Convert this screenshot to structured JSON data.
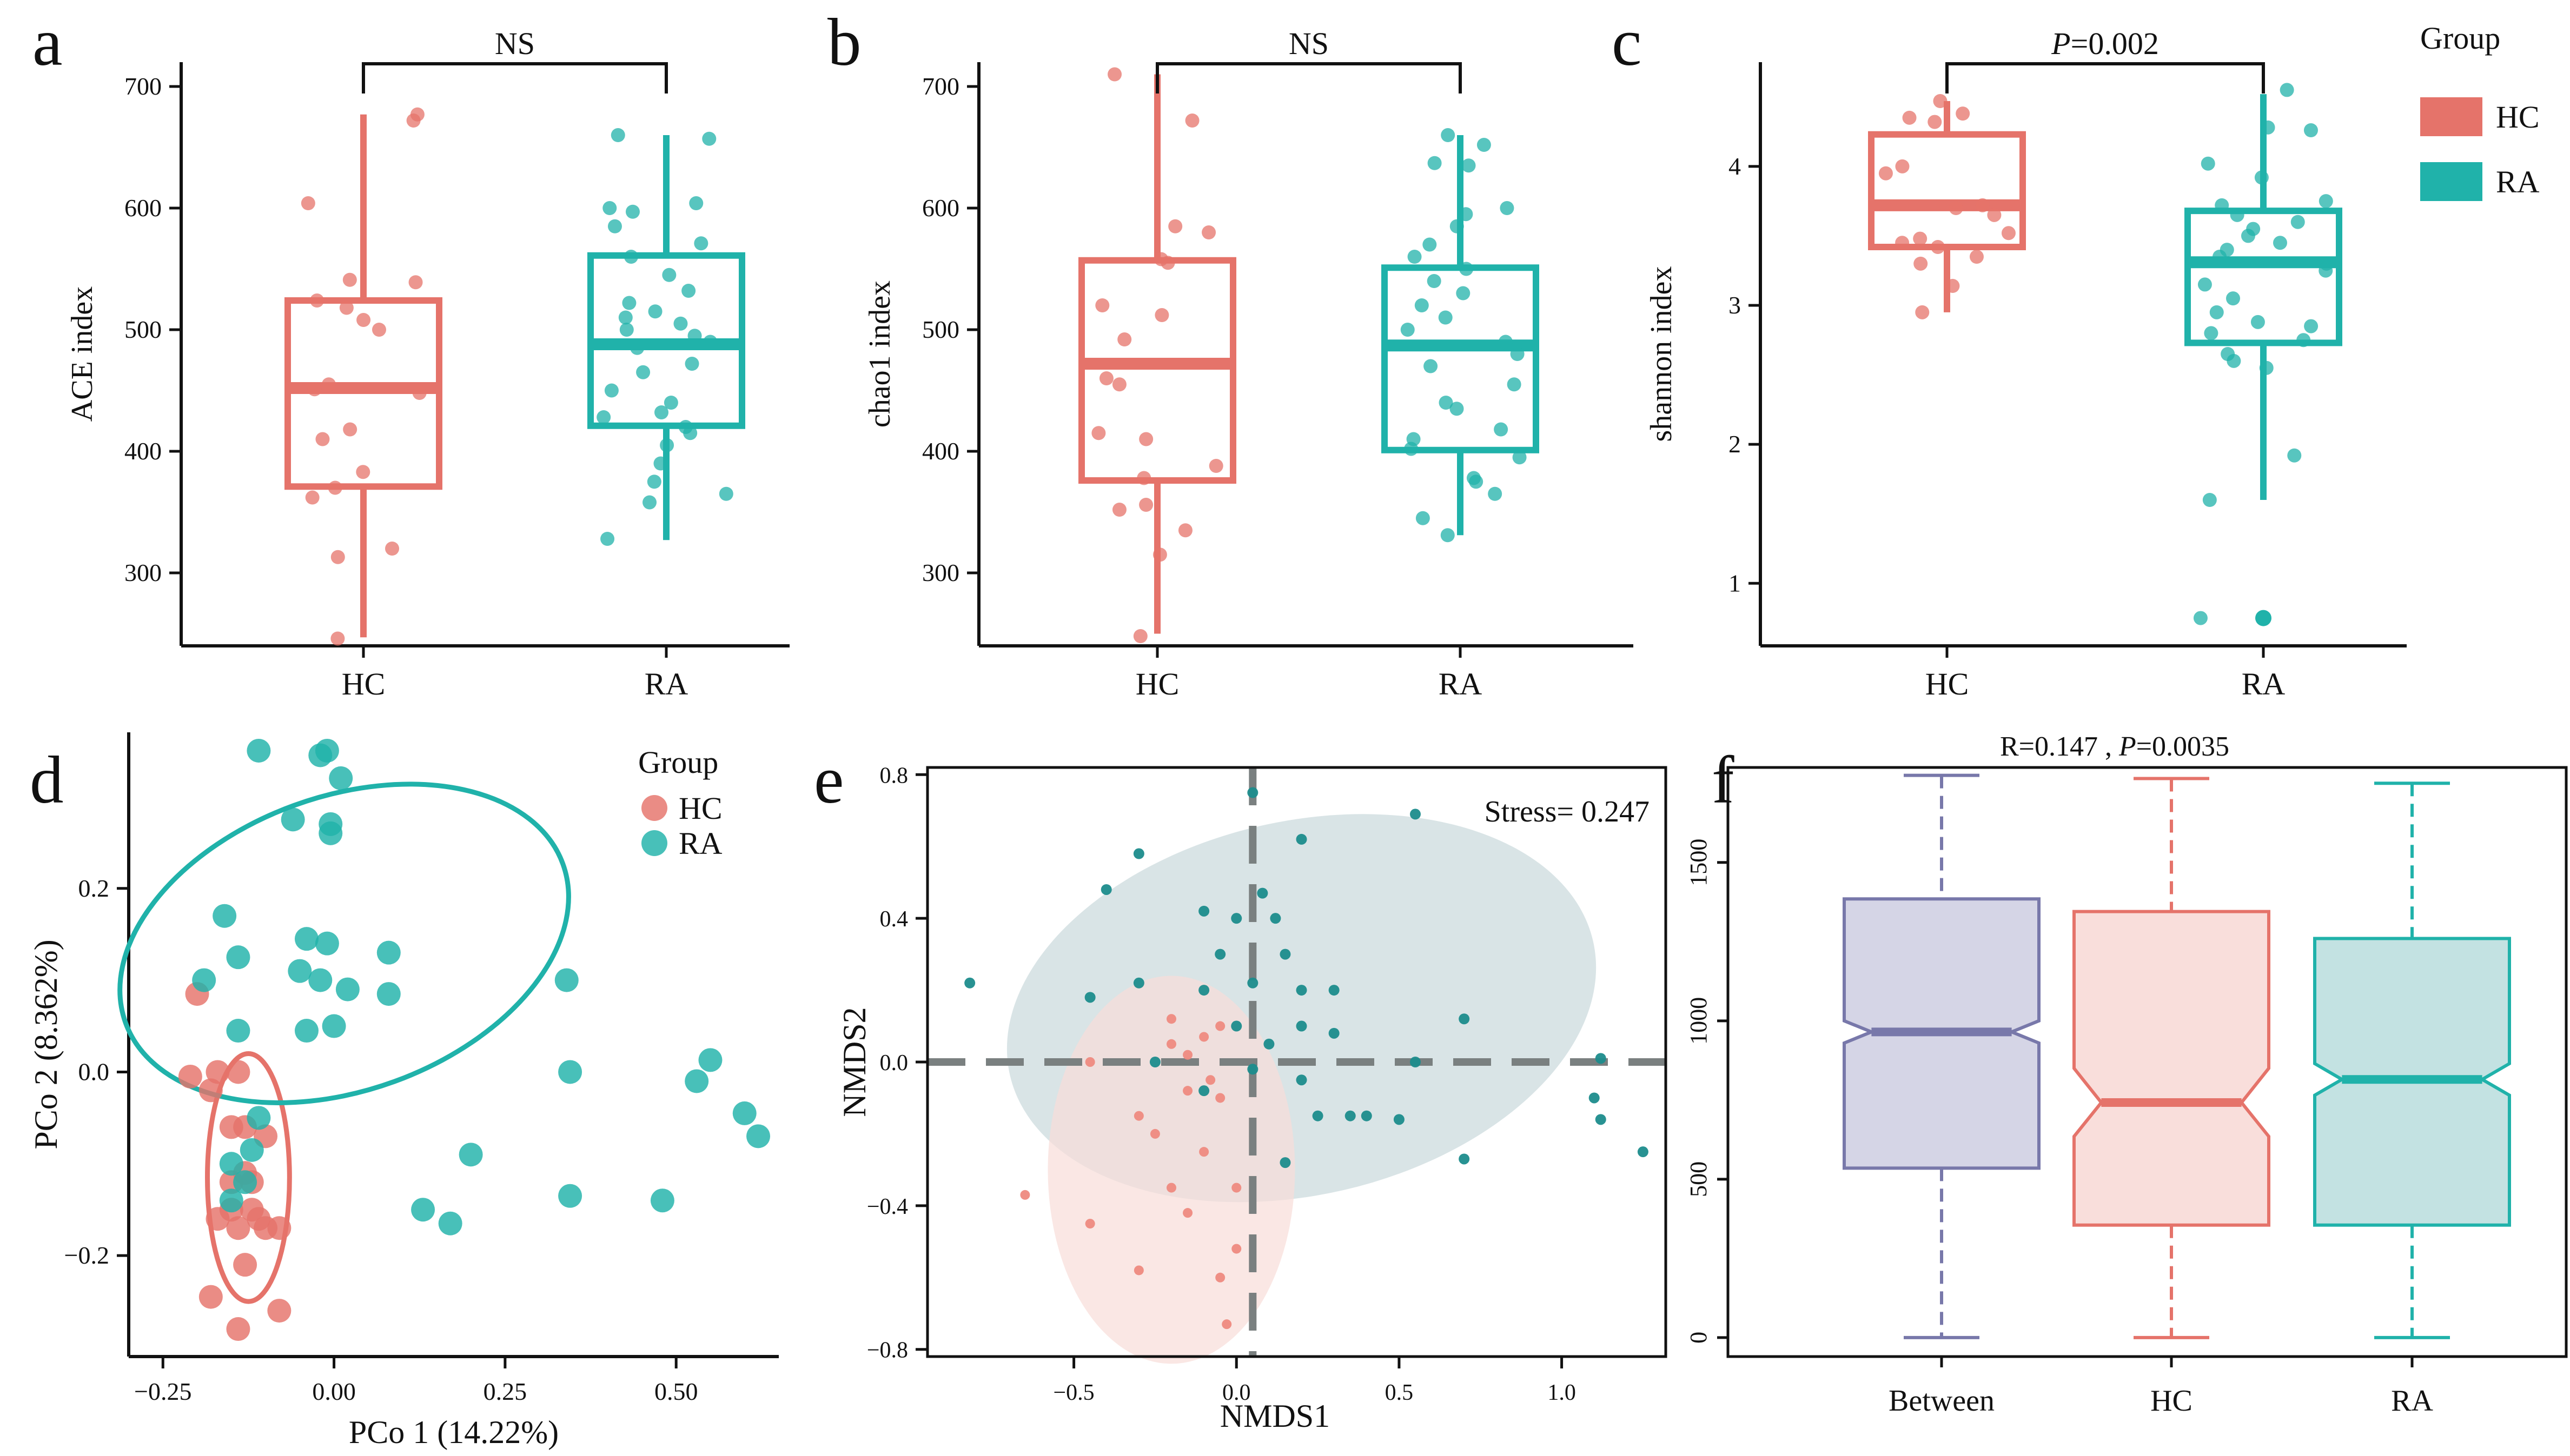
{
  "figure": {
    "colors": {
      "hc": "#E5736A",
      "ra": "#20B2AA",
      "between": "#7878AA",
      "axis": "#111111",
      "dash": "#7A8080"
    },
    "legend_top": {
      "title": "Group",
      "items": [
        "HC",
        "RA"
      ]
    }
  },
  "chart_data": [
    {
      "panel": "a",
      "type": "box",
      "ylabel": "ACE index",
      "ylim": [
        240,
        720
      ],
      "yticks": [
        300,
        400,
        500,
        600,
        700
      ],
      "categories": [
        "HC",
        "RA"
      ],
      "boxes": [
        {
          "group": "HC",
          "q1": 371,
          "median": 452,
          "q3": 524,
          "min": 247,
          "max": 677
        },
        {
          "group": "RA",
          "q1": 421,
          "median": 488,
          "q3": 561,
          "min": 327,
          "max": 660
        }
      ],
      "points": [
        {
          "group": "HC",
          "values": [
            672,
            677,
            604,
            541,
            539,
            524,
            518,
            508,
            500,
            455,
            451,
            448,
            418,
            410,
            383,
            370,
            362,
            320,
            313,
            246
          ]
        },
        {
          "group": "RA",
          "values": [
            660,
            657,
            604,
            600,
            597,
            585,
            571,
            560,
            545,
            532,
            522,
            515,
            510,
            505,
            500,
            495,
            490,
            485,
            472,
            465,
            450,
            440,
            432,
            428,
            420,
            415,
            405,
            390,
            375,
            365,
            358,
            328
          ]
        }
      ],
      "significance": "NS"
    },
    {
      "panel": "b",
      "type": "box",
      "ylabel": "chao1 index",
      "ylim": [
        240,
        720
      ],
      "yticks": [
        300,
        400,
        500,
        600,
        700
      ],
      "categories": [
        "HC",
        "RA"
      ],
      "boxes": [
        {
          "group": "HC",
          "q1": 376,
          "median": 472,
          "q3": 557,
          "min": 250,
          "max": 710
        },
        {
          "group": "RA",
          "q1": 401,
          "median": 487,
          "q3": 551,
          "min": 331,
          "max": 660
        }
      ],
      "points": [
        {
          "group": "HC",
          "values": [
            710,
            672,
            585,
            580,
            558,
            555,
            520,
            512,
            492,
            460,
            455,
            415,
            410,
            388,
            378,
            356,
            352,
            335,
            315,
            248
          ]
        },
        {
          "group": "RA",
          "values": [
            660,
            652,
            637,
            635,
            600,
            595,
            585,
            570,
            560,
            550,
            540,
            530,
            520,
            510,
            500,
            490,
            480,
            470,
            455,
            440,
            435,
            418,
            410,
            402,
            395,
            378,
            375,
            365,
            345,
            331
          ]
        }
      ],
      "significance": "NS"
    },
    {
      "panel": "c",
      "type": "box",
      "ylabel": "shannon index",
      "ylim": [
        0.55,
        4.75
      ],
      "yticks": [
        1,
        2,
        3,
        4
      ],
      "categories": [
        "HC",
        "RA"
      ],
      "boxes": [
        {
          "group": "HC",
          "q1": 3.42,
          "median": 3.72,
          "q3": 4.23,
          "min": 2.95,
          "max": 4.47
        },
        {
          "group": "RA",
          "q1": 2.73,
          "median": 3.31,
          "q3": 3.68,
          "min": 1.6,
          "max": 4.52
        },
        {
          "group": "RA-outlier",
          "value": 0.75
        }
      ],
      "points": [
        {
          "group": "HC",
          "values": [
            4.47,
            4.38,
            4.35,
            4.32,
            4.0,
            3.95,
            3.72,
            3.7,
            3.65,
            3.52,
            3.48,
            3.45,
            3.42,
            3.35,
            3.3,
            3.14,
            2.95
          ]
        },
        {
          "group": "RA",
          "values": [
            4.55,
            4.28,
            4.26,
            4.02,
            3.92,
            3.75,
            3.72,
            3.65,
            3.6,
            3.55,
            3.5,
            3.45,
            3.4,
            3.35,
            3.3,
            3.25,
            3.15,
            3.05,
            2.95,
            2.88,
            2.85,
            2.8,
            2.75,
            2.65,
            2.6,
            2.55,
            1.92,
            1.6,
            0.75
          ]
        }
      ],
      "significance_prefix": "P",
      "significance_value": "=0.002"
    },
    {
      "panel": "d",
      "type": "scatter",
      "xlabel": "PCo 1 (14.22%)",
      "ylabel": "PCo 2 (8.362%)",
      "xlim": [
        -0.3,
        0.65
      ],
      "ylim": [
        -0.31,
        0.37
      ],
      "xticks": [
        -0.25,
        0.0,
        0.25,
        0.5
      ],
      "xtick_labels": [
        "−0.25",
        "0.00",
        "0.25",
        "0.50"
      ],
      "yticks": [
        -0.2,
        0.0,
        0.2
      ],
      "ytick_labels": [
        "−0.2",
        "0.0",
        "0.2"
      ],
      "legend_title": "Group",
      "legend": [
        "HC",
        "RA"
      ],
      "series": [
        {
          "name": "HC",
          "points": [
            [
              -0.2,
              0.085
            ],
            [
              -0.21,
              -0.005
            ],
            [
              -0.17,
              0.0
            ],
            [
              -0.14,
              0.0
            ],
            [
              -0.18,
              -0.02
            ],
            [
              -0.15,
              -0.06
            ],
            [
              -0.13,
              -0.06
            ],
            [
              -0.1,
              -0.07
            ],
            [
              -0.15,
              -0.12
            ],
            [
              -0.13,
              -0.11
            ],
            [
              -0.12,
              -0.12
            ],
            [
              -0.15,
              -0.15
            ],
            [
              -0.17,
              -0.16
            ],
            [
              -0.14,
              -0.17
            ],
            [
              -0.12,
              -0.15
            ],
            [
              -0.11,
              -0.16
            ],
            [
              -0.1,
              -0.17
            ],
            [
              -0.08,
              -0.17
            ],
            [
              -0.13,
              -0.21
            ],
            [
              -0.18,
              -0.245
            ],
            [
              -0.08,
              -0.26
            ],
            [
              -0.14,
              -0.28
            ]
          ]
        },
        {
          "name": "RA",
          "points": [
            [
              -0.11,
              0.35
            ],
            [
              -0.02,
              0.345
            ],
            [
              -0.01,
              0.35
            ],
            [
              0.01,
              0.32
            ],
            [
              -0.06,
              0.275
            ],
            [
              -0.005,
              0.27
            ],
            [
              -0.005,
              0.26
            ],
            [
              -0.16,
              0.17
            ],
            [
              -0.19,
              0.1
            ],
            [
              -0.14,
              0.125
            ],
            [
              -0.04,
              0.145
            ],
            [
              -0.01,
              0.14
            ],
            [
              0.08,
              0.13
            ],
            [
              -0.05,
              0.11
            ],
            [
              -0.02,
              0.1
            ],
            [
              0.02,
              0.09
            ],
            [
              0.08,
              0.085
            ],
            [
              -0.14,
              0.045
            ],
            [
              -0.04,
              0.045
            ],
            [
              0.0,
              0.05
            ],
            [
              -0.11,
              -0.05
            ],
            [
              -0.12,
              -0.085
            ],
            [
              -0.15,
              -0.1
            ],
            [
              -0.13,
              -0.12
            ],
            [
              -0.15,
              -0.14
            ],
            [
              0.2,
              -0.09
            ],
            [
              0.13,
              -0.15
            ],
            [
              0.17,
              -0.165
            ],
            [
              0.34,
              0.1
            ],
            [
              0.345,
              0.0
            ],
            [
              0.345,
              -0.135
            ],
            [
              0.48,
              -0.14
            ],
            [
              0.55,
              0.013
            ],
            [
              0.53,
              -0.01
            ],
            [
              0.6,
              -0.045
            ],
            [
              0.62,
              -0.07
            ]
          ]
        }
      ],
      "ellipses": [
        {
          "group": "HC",
          "center": [
            -0.125,
            -0.115
          ],
          "semi_axes": [
            0.06,
            0.135
          ],
          "angle_deg": 0
        },
        {
          "group": "RA",
          "center": [
            0.015,
            0.14
          ],
          "semi_axes": [
            0.34,
            0.16
          ],
          "angle_deg": -20
        }
      ]
    },
    {
      "panel": "e",
      "type": "scatter",
      "xlabel": "NMDS1",
      "ylabel": "NMDS2",
      "xlim": [
        -0.95,
        1.32
      ],
      "ylim": [
        -0.82,
        0.82
      ],
      "xticks": [
        -0.5,
        0.0,
        0.5,
        1.0
      ],
      "xtick_labels": [
        "−0.5",
        "0.0",
        "0.5",
        "1.0"
      ],
      "yticks": [
        -0.8,
        -0.4,
        0.0,
        0.4,
        0.8
      ],
      "ytick_labels": [
        "−0.8",
        "−0.4",
        "0.0",
        "0.4",
        "0.8"
      ],
      "annotation": "Stress= 0.247",
      "series": [
        {
          "name": "HC",
          "points": [
            [
              -0.2,
              0.05
            ],
            [
              -0.15,
              0.02
            ],
            [
              -0.1,
              0.07
            ],
            [
              -0.05,
              0.1
            ],
            [
              -0.08,
              -0.05
            ],
            [
              -0.15,
              -0.08
            ],
            [
              -0.05,
              -0.1
            ],
            [
              -0.25,
              -0.2
            ],
            [
              -0.3,
              -0.15
            ],
            [
              -0.1,
              -0.25
            ],
            [
              -0.2,
              -0.35
            ],
            [
              -0.65,
              -0.37
            ],
            [
              -0.45,
              -0.45
            ],
            [
              -0.15,
              -0.42
            ],
            [
              0.0,
              -0.35
            ],
            [
              -0.05,
              -0.6
            ],
            [
              -0.3,
              -0.58
            ],
            [
              0.0,
              -0.52
            ],
            [
              -0.03,
              -0.73
            ],
            [
              -0.45,
              0.0
            ],
            [
              -0.2,
              0.12
            ]
          ]
        },
        {
          "name": "RA",
          "points": [
            [
              -0.82,
              0.22
            ],
            [
              -0.3,
              0.58
            ],
            [
              -0.4,
              0.48
            ],
            [
              -0.1,
              0.42
            ],
            [
              0.08,
              0.47
            ],
            [
              0.0,
              0.4
            ],
            [
              0.12,
              0.4
            ],
            [
              -0.05,
              0.3
            ],
            [
              0.15,
              0.3
            ],
            [
              0.05,
              0.22
            ],
            [
              -0.1,
              0.2
            ],
            [
              0.2,
              0.2
            ],
            [
              -0.45,
              0.18
            ],
            [
              -0.3,
              0.22
            ],
            [
              0.3,
              0.2
            ],
            [
              0.2,
              0.62
            ],
            [
              0.05,
              0.75
            ],
            [
              0.55,
              0.69
            ],
            [
              0.0,
              0.1
            ],
            [
              0.1,
              0.05
            ],
            [
              0.2,
              0.1
            ],
            [
              0.3,
              0.08
            ],
            [
              0.05,
              -0.02
            ],
            [
              0.2,
              -0.05
            ],
            [
              -0.1,
              -0.08
            ],
            [
              0.25,
              -0.15
            ],
            [
              0.35,
              -0.15
            ],
            [
              0.4,
              -0.15
            ],
            [
              0.5,
              -0.16
            ],
            [
              0.55,
              0.0
            ],
            [
              0.7,
              0.12
            ],
            [
              0.7,
              -0.27
            ],
            [
              1.12,
              0.01
            ],
            [
              1.1,
              -0.1
            ],
            [
              1.12,
              -0.16
            ],
            [
              1.25,
              -0.25
            ],
            [
              -0.25,
              0.0
            ],
            [
              0.15,
              -0.28
            ]
          ]
        }
      ],
      "ellipses": [
        {
          "group": "HC",
          "center": [
            -0.2,
            -0.3
          ],
          "semi_axes": [
            0.38,
            0.54
          ],
          "angle_deg": 0
        },
        {
          "group": "RA",
          "center": [
            0.2,
            0.15
          ],
          "semi_axes": [
            0.92,
            0.52
          ],
          "angle_deg": -13
        }
      ]
    },
    {
      "panel": "f",
      "type": "notched-box",
      "title_prefix": "R=0.147 , ",
      "title_p": "P",
      "title_value": "=0.0035",
      "ylim": [
        -60,
        1800
      ],
      "yticks": [
        0,
        500,
        1000,
        1500
      ],
      "categories": [
        "Between",
        "HC",
        "RA"
      ],
      "boxes": [
        {
          "group": "Between",
          "min": 0,
          "q1": 535,
          "notch_low": 930,
          "median": 965,
          "notch_high": 1000,
          "q3": 1385,
          "max": 1775
        },
        {
          "group": "HC",
          "min": 0,
          "q1": 355,
          "notch_low": 635,
          "median": 742,
          "notch_high": 850,
          "q3": 1345,
          "max": 1765
        },
        {
          "group": "RA",
          "min": 0,
          "q1": 355,
          "notch_low": 765,
          "median": 815,
          "notch_high": 865,
          "q3": 1260,
          "max": 1750
        }
      ]
    }
  ]
}
